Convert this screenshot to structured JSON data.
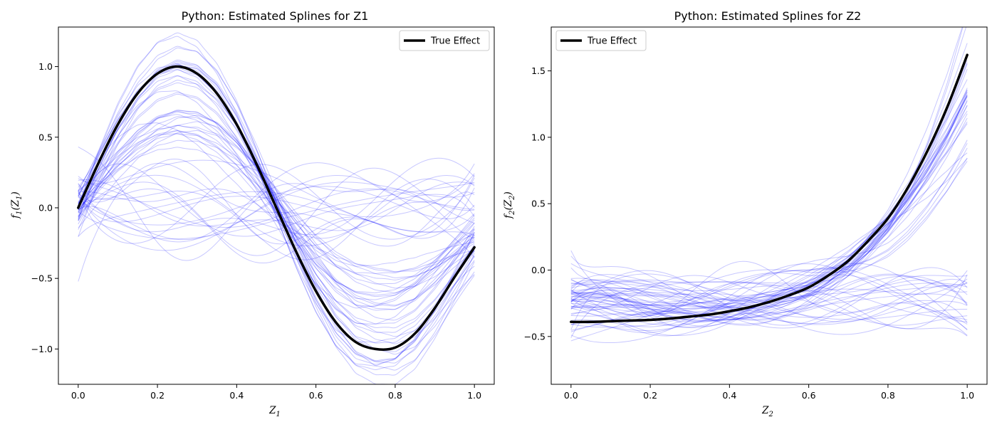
{
  "figure": {
    "colors": {
      "estimate": "#0000ff",
      "true_effect": "#000000"
    }
  },
  "chart_data": [
    {
      "id": "z1",
      "type": "line",
      "title": "Python: Estimated Splines for Z1",
      "xlabel": "Z",
      "xlabel_sub": "1",
      "ylabel": "f",
      "ylabel_sub": "1",
      "ylabel_arg": "(Z",
      "ylabel_arg_sub": "1",
      "ylabel_close": ")",
      "xlim": [
        -0.05,
        1.05
      ],
      "ylim": [
        -1.25,
        1.28
      ],
      "xticks": [
        0.0,
        0.2,
        0.4,
        0.6,
        0.8,
        1.0
      ],
      "xtick_labels": [
        "0.0",
        "0.2",
        "0.4",
        "0.6",
        "0.8",
        "1.0"
      ],
      "yticks": [
        -1.0,
        -0.5,
        0.0,
        0.5,
        1.0
      ],
      "ytick_labels": [
        "−1.0",
        "−0.5",
        "0.0",
        "0.5",
        "1.0"
      ],
      "grid": false,
      "legend": {
        "placement": "upper right",
        "entries": [
          "True Effect"
        ]
      },
      "true_effect": {
        "name": "True Effect",
        "x": [
          0.0,
          0.05,
          0.1,
          0.15,
          0.2,
          0.25,
          0.3,
          0.35,
          0.4,
          0.45,
          0.5,
          0.55,
          0.6,
          0.65,
          0.7,
          0.75,
          0.8,
          0.85,
          0.9,
          0.95,
          1.0
        ],
        "y": [
          0.0,
          0.31,
          0.59,
          0.81,
          0.95,
          1.0,
          0.95,
          0.81,
          0.59,
          0.31,
          0.0,
          -0.31,
          -0.59,
          -0.81,
          -0.95,
          -1.0,
          -0.99,
          -0.89,
          -0.71,
          -0.49,
          -0.28
        ]
      },
      "estimates": {
        "count": 60,
        "x": [
          0.0,
          0.05,
          0.1,
          0.15,
          0.2,
          0.25,
          0.3,
          0.35,
          0.4,
          0.45,
          0.5,
          0.55,
          0.6,
          0.65,
          0.7,
          0.75,
          0.8,
          0.85,
          0.9,
          0.95,
          1.0
        ],
        "fitted_fraction": 0.62,
        "fitted_spread": 0.1,
        "null_amplitude": 0.25
      }
    },
    {
      "id": "z2",
      "type": "line",
      "title": "Python: Estimated Splines for Z2",
      "xlabel": "Z",
      "xlabel_sub": "2",
      "ylabel": "f",
      "ylabel_sub": "2",
      "ylabel_arg": "(Z",
      "ylabel_arg_sub": "2",
      "ylabel_close": ")",
      "xlim": [
        -0.05,
        1.05
      ],
      "ylim": [
        -0.86,
        1.83
      ],
      "xticks": [
        0.0,
        0.2,
        0.4,
        0.6,
        0.8,
        1.0
      ],
      "xtick_labels": [
        "0.0",
        "0.2",
        "0.4",
        "0.6",
        "0.8",
        "1.0"
      ],
      "yticks": [
        -0.5,
        0.0,
        0.5,
        1.0,
        1.5
      ],
      "ytick_labels": [
        "−0.5",
        "0.0",
        "0.5",
        "1.0",
        "1.5"
      ],
      "grid": false,
      "legend": {
        "placement": "upper left",
        "entries": [
          "True Effect"
        ]
      },
      "true_effect": {
        "name": "True Effect",
        "x": [
          0.0,
          0.05,
          0.1,
          0.15,
          0.2,
          0.25,
          0.3,
          0.35,
          0.4,
          0.45,
          0.5,
          0.55,
          0.6,
          0.65,
          0.7,
          0.75,
          0.8,
          0.85,
          0.9,
          0.95,
          1.0
        ],
        "y": [
          -0.39,
          -0.39,
          -0.385,
          -0.38,
          -0.375,
          -0.365,
          -0.35,
          -0.335,
          -0.31,
          -0.28,
          -0.24,
          -0.19,
          -0.13,
          -0.04,
          0.07,
          0.22,
          0.39,
          0.62,
          0.9,
          1.23,
          1.62
        ]
      },
      "estimates": {
        "count": 60,
        "x": [
          0.0,
          0.05,
          0.1,
          0.15,
          0.2,
          0.25,
          0.3,
          0.35,
          0.4,
          0.45,
          0.5,
          0.55,
          0.6,
          0.65,
          0.7,
          0.75,
          0.8,
          0.85,
          0.9,
          0.95,
          1.0
        ],
        "fitted_fraction": 0.55,
        "fitted_spread": 0.12,
        "null_amplitude": 0.2
      }
    }
  ]
}
